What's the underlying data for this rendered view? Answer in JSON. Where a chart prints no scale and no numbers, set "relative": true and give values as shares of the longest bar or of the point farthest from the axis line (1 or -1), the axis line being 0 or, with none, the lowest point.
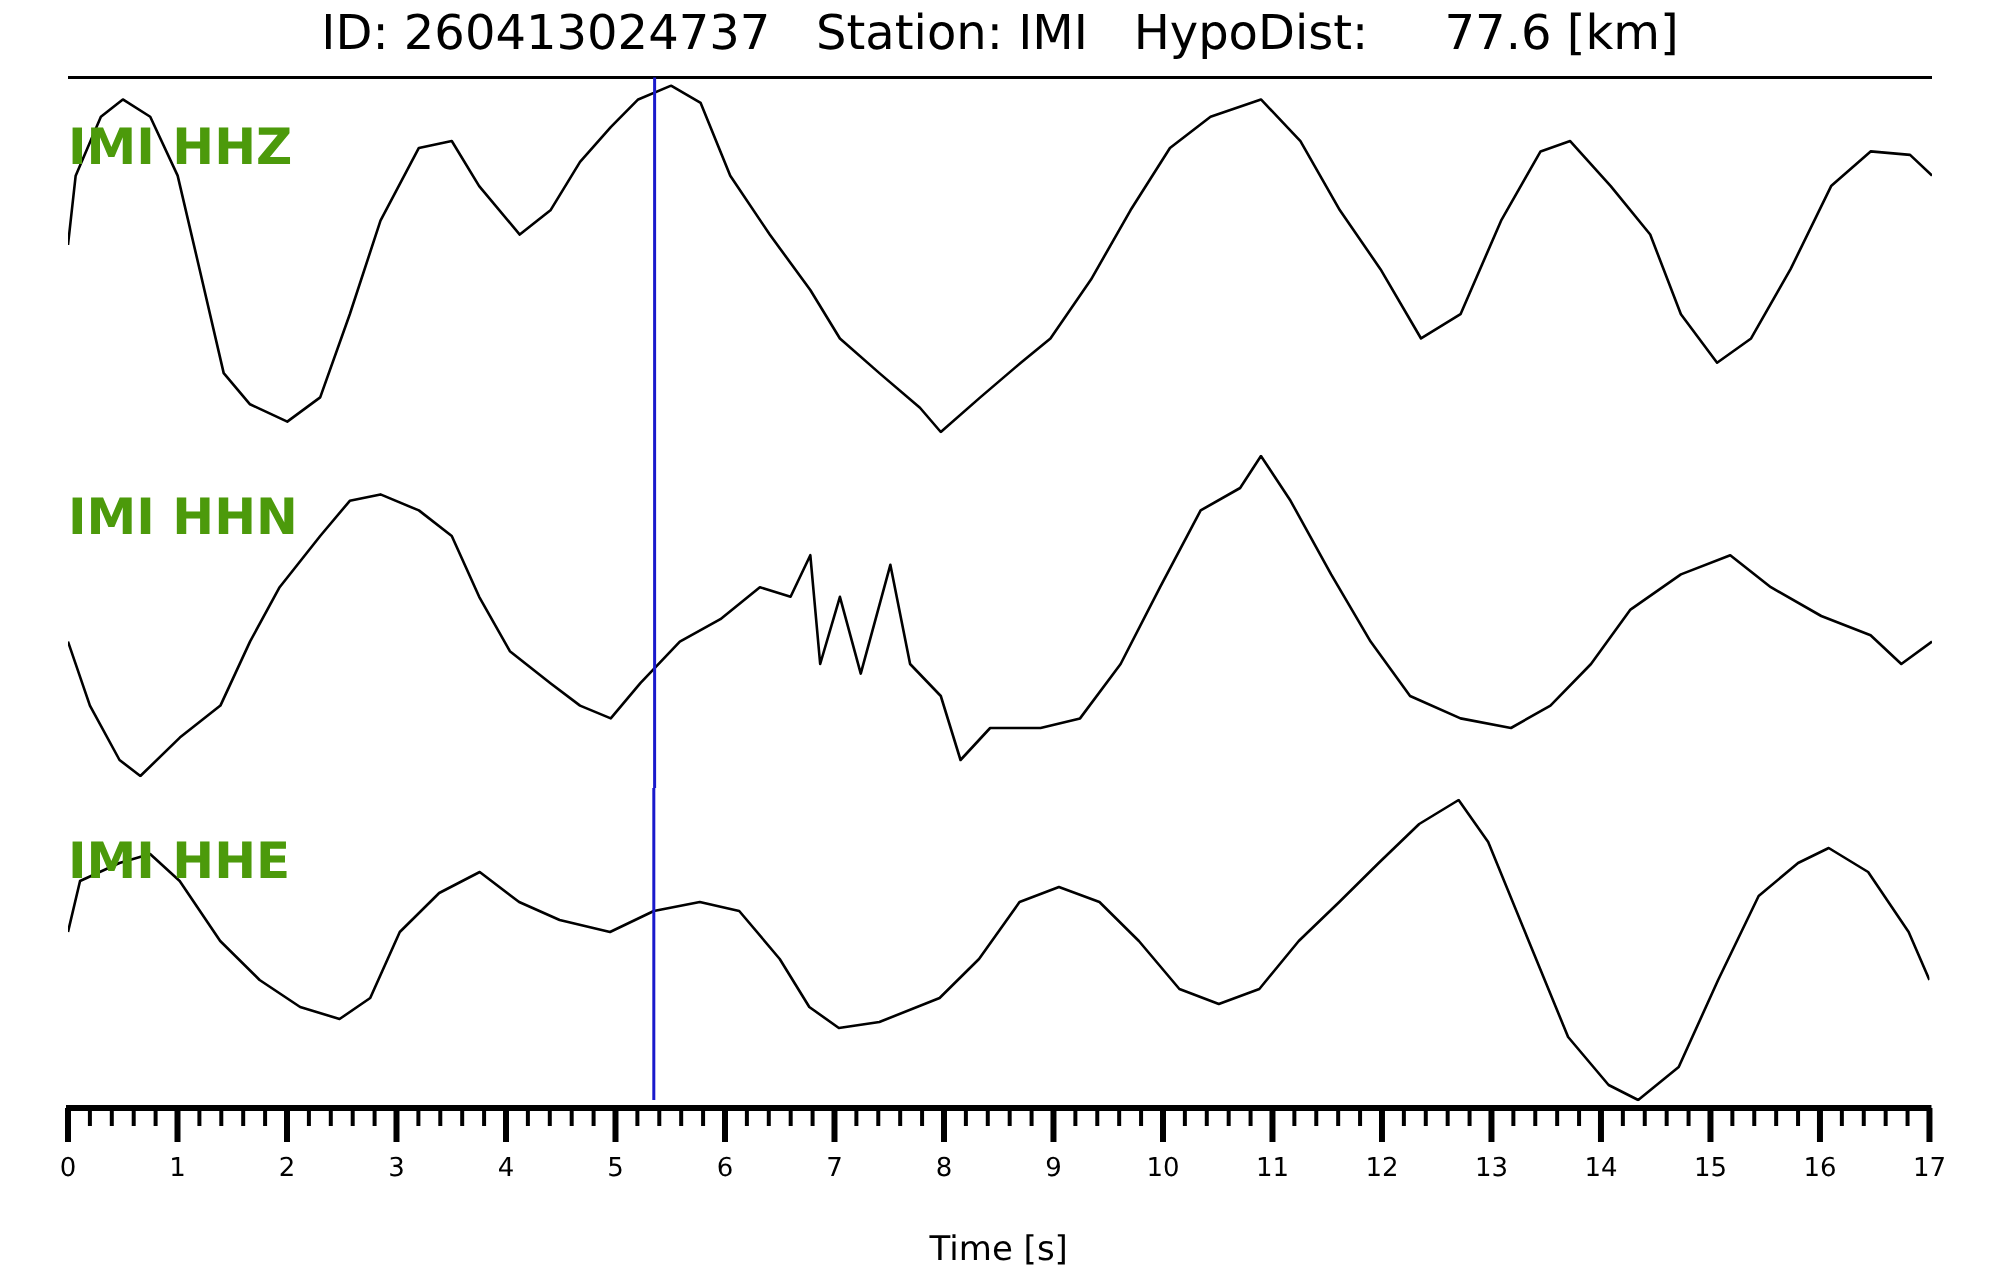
{
  "chart_data": [
    {
      "type": "line",
      "title": "ID: 260413024737   Station: IMI   HypoDist:     77.6 [km]",
      "relative": true,
      "xlim": [
        0,
        17
      ],
      "tick_labels": false,
      "grid": false,
      "legend": false,
      "ref_lines": [
        {
          "axis": "x",
          "value": 5.35,
          "color": "#1a1acc"
        }
      ],
      "series": [
        {
          "name": "IMI HHZ",
          "color": "#000000",
          "x": [
            0,
            0.07,
            0.3,
            0.5,
            0.75,
            1.0,
            1.2,
            1.42,
            1.66,
            2.0,
            2.3,
            2.57,
            2.85,
            3.2,
            3.5,
            3.75,
            4.12,
            4.4,
            4.67,
            4.95,
            5.2,
            5.5,
            5.77,
            6.04,
            6.4,
            6.77,
            7.04,
            7.4,
            7.77,
            7.96,
            8.32,
            8.69,
            8.96,
            9.33,
            9.69,
            10.05,
            10.42,
            10.88,
            11.24,
            11.6,
            11.97,
            12.34,
            12.7,
            13.07,
            13.43,
            13.7,
            14.07,
            14.43,
            14.71,
            15.04,
            15.35,
            15.71,
            16.08,
            16.44,
            16.8,
            17
          ],
          "values": [
            0.54,
            0.74,
            0.91,
            0.96,
            0.91,
            0.74,
            0.47,
            0.17,
            0.08,
            0.03,
            0.1,
            0.34,
            0.61,
            0.82,
            0.84,
            0.71,
            0.57,
            0.64,
            0.78,
            0.88,
            0.96,
            1,
            0.95,
            0.74,
            0.57,
            0.41,
            0.27,
            0.17,
            0.07,
            0,
            0.1,
            0.2,
            0.27,
            0.44,
            0.64,
            0.82,
            0.91,
            0.96,
            0.84,
            0.64,
            0.47,
            0.27,
            0.34,
            0.61,
            0.81,
            0.84,
            0.71,
            0.57,
            0.34,
            0.2,
            0.27,
            0.47,
            0.71,
            0.81,
            0.8,
            0.74
          ]
        }
      ]
    },
    {
      "type": "line",
      "relative": true,
      "xlim": [
        0,
        17
      ],
      "tick_labels": false,
      "grid": false,
      "legend": false,
      "ref_lines": [
        {
          "axis": "x",
          "value": 5.35,
          "color": "#1a1acc"
        }
      ],
      "series": [
        {
          "name": "IMI HHN",
          "color": "#000000",
          "x": [
            0,
            0.2,
            0.47,
            0.66,
            1.02,
            1.39,
            1.66,
            1.93,
            2.3,
            2.57,
            2.85,
            3.2,
            3.5,
            3.75,
            4.03,
            4.4,
            4.67,
            4.95,
            5.22,
            5.58,
            5.95,
            6.31,
            6.59,
            6.77,
            6.86,
            7.04,
            7.23,
            7.5,
            7.68,
            7.96,
            8.14,
            8.41,
            8.87,
            9.23,
            9.6,
            9.96,
            10.33,
            10.69,
            10.88,
            11.15,
            11.52,
            11.88,
            12.24,
            12.7,
            13.16,
            13.52,
            13.89,
            14.25,
            14.71,
            15.16,
            15.53,
            15.99,
            16.44,
            16.72,
            17
          ],
          "values": [
            0.42,
            0.22,
            0.05,
            0,
            0.12,
            0.22,
            0.42,
            0.59,
            0.75,
            0.86,
            0.88,
            0.83,
            0.75,
            0.56,
            0.39,
            0.29,
            0.22,
            0.18,
            0.29,
            0.42,
            0.49,
            0.59,
            0.56,
            0.69,
            0.35,
            0.56,
            0.32,
            0.66,
            0.35,
            0.25,
            0.05,
            0.15,
            0.15,
            0.18,
            0.35,
            0.59,
            0.83,
            0.9,
            1,
            0.86,
            0.63,
            0.42,
            0.25,
            0.18,
            0.15,
            0.22,
            0.35,
            0.52,
            0.63,
            0.69,
            0.59,
            0.5,
            0.44,
            0.35,
            0.42
          ]
        }
      ]
    },
    {
      "type": "line",
      "relative": true,
      "xlabel": "Time [s]",
      "xlim": [
        0,
        17
      ],
      "tick_labels": "x",
      "grid": false,
      "legend": false,
      "xticks": [
        0,
        {
          "value": 0.2,
          "label": null
        },
        {
          "value": 0.4,
          "label": null
        },
        {
          "value": 0.6,
          "label": null
        },
        {
          "value": 0.8,
          "label": null
        },
        1,
        {
          "value": 1.2,
          "label": null
        },
        {
          "value": 1.4,
          "label": null
        },
        {
          "value": 1.6,
          "label": null
        },
        {
          "value": 1.8,
          "label": null
        },
        2,
        {
          "value": 2.2,
          "label": null
        },
        {
          "value": 2.4,
          "label": null
        },
        {
          "value": 2.6,
          "label": null
        },
        {
          "value": 2.8,
          "label": null
        },
        3,
        {
          "value": 3.2,
          "label": null
        },
        {
          "value": 3.4,
          "label": null
        },
        {
          "value": 3.6,
          "label": null
        },
        {
          "value": 3.8,
          "label": null
        },
        4,
        {
          "value": 4.2,
          "label": null
        },
        {
          "value": 4.4,
          "label": null
        },
        {
          "value": 4.6,
          "label": null
        },
        {
          "value": 4.8,
          "label": null
        },
        5,
        {
          "value": 5.2,
          "label": null
        },
        {
          "value": 5.4,
          "label": null
        },
        {
          "value": 5.6,
          "label": null
        },
        {
          "value": 5.8,
          "label": null
        },
        6,
        {
          "value": 6.2,
          "label": null
        },
        {
          "value": 6.4,
          "label": null
        },
        {
          "value": 6.6,
          "label": null
        },
        {
          "value": 6.8,
          "label": null
        },
        7,
        {
          "value": 7.2,
          "label": null
        },
        {
          "value": 7.4,
          "label": null
        },
        {
          "value": 7.6,
          "label": null
        },
        {
          "value": 7.8,
          "label": null
        },
        8,
        {
          "value": 8.2,
          "label": null
        },
        {
          "value": 8.4,
          "label": null
        },
        {
          "value": 8.6,
          "label": null
        },
        {
          "value": 8.8,
          "label": null
        },
        9,
        {
          "value": 9.2,
          "label": null
        },
        {
          "value": 9.4,
          "label": null
        },
        {
          "value": 9.6,
          "label": null
        },
        {
          "value": 9.8,
          "label": null
        },
        10,
        {
          "value": 10.2,
          "label": null
        },
        {
          "value": 10.4,
          "label": null
        },
        {
          "value": 10.6,
          "label": null
        },
        {
          "value": 10.8,
          "label": null
        },
        11,
        {
          "value": 11.2,
          "label": null
        },
        {
          "value": 11.4,
          "label": null
        },
        {
          "value": 11.6,
          "label": null
        },
        {
          "value": 11.8,
          "label": null
        },
        12,
        {
          "value": 12.2,
          "label": null
        },
        {
          "value": 12.4,
          "label": null
        },
        {
          "value": 12.6,
          "label": null
        },
        {
          "value": 12.8,
          "label": null
        },
        13,
        {
          "value": 13.2,
          "label": null
        },
        {
          "value": 13.4,
          "label": null
        },
        {
          "value": 13.6,
          "label": null
        },
        {
          "value": 13.8,
          "label": null
        },
        14,
        {
          "value": 14.2,
          "label": null
        },
        {
          "value": 14.4,
          "label": null
        },
        {
          "value": 14.6,
          "label": null
        },
        {
          "value": 14.8,
          "label": null
        },
        15,
        {
          "value": 15.2,
          "label": null
        },
        {
          "value": 15.4,
          "label": null
        },
        {
          "value": 15.6,
          "label": null
        },
        {
          "value": 15.8,
          "label": null
        },
        16,
        {
          "value": 16.2,
          "label": null
        },
        {
          "value": 16.4,
          "label": null
        },
        {
          "value": 16.6,
          "label": null
        },
        {
          "value": 16.8,
          "label": null
        },
        17
      ],
      "ref_lines": [
        {
          "axis": "x",
          "value": 5.35,
          "color": "#1a1acc"
        }
      ],
      "series": [
        {
          "name": "IMI HHE",
          "color": "#000000",
          "x": [
            0,
            0.11,
            0.47,
            0.75,
            1.02,
            1.39,
            1.75,
            2.12,
            2.48,
            2.76,
            3.03,
            3.39,
            3.76,
            4.12,
            4.49,
            4.95,
            5.35,
            5.77,
            6.13,
            6.5,
            6.77,
            7.04,
            7.41,
            7.96,
            8.32,
            8.69,
            9.05,
            9.42,
            9.78,
            10.15,
            10.51,
            10.88,
            11.24,
            11.61,
            11.97,
            12.34,
            12.7,
            12.97,
            13.34,
            13.7,
            14.07,
            14.34,
            14.71,
            15.07,
            15.44,
            15.8,
            16.08,
            16.44,
            16.81,
            17
          ],
          "values": [
            0.56,
            0.73,
            0.79,
            0.82,
            0.73,
            0.53,
            0.4,
            0.31,
            0.27,
            0.34,
            0.56,
            0.69,
            0.76,
            0.66,
            0.6,
            0.56,
            0.63,
            0.66,
            0.63,
            0.47,
            0.31,
            0.24,
            0.26,
            0.34,
            0.47,
            0.66,
            0.71,
            0.66,
            0.53,
            0.37,
            0.32,
            0.37,
            0.53,
            0.66,
            0.79,
            0.92,
            1,
            0.86,
            0.53,
            0.21,
            0.05,
            0,
            0.11,
            0.4,
            0.68,
            0.79,
            0.84,
            0.76,
            0.56,
            0.4
          ]
        }
      ]
    }
  ]
}
